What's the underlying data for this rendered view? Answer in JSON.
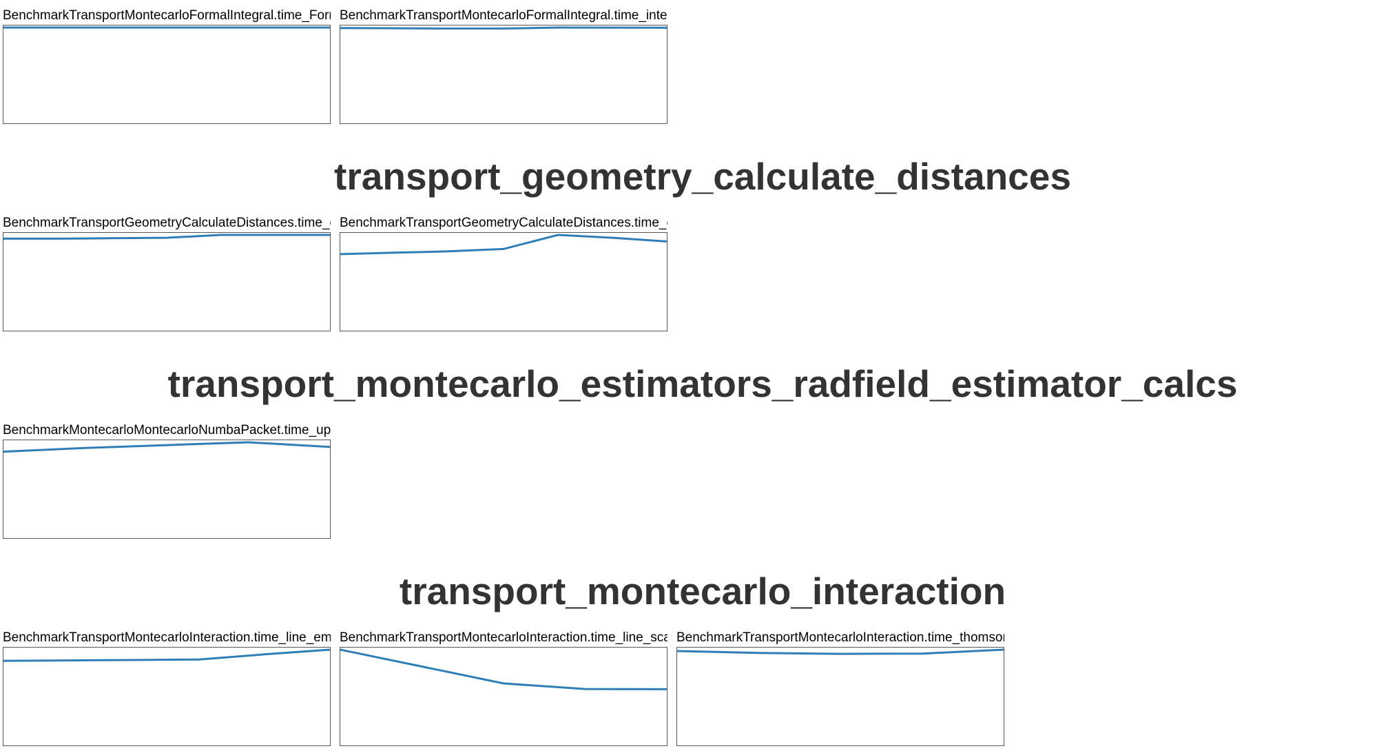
{
  "sections": [
    {
      "heading": "",
      "graphs": [
        {
          "title": "BenchmarkTransportMontecarloFormalIntegral.time_FormalIntegral_functions",
          "trend": [
            1.0,
            1.0,
            1.0,
            1.0,
            1.0,
            1.0,
            1.0
          ]
        },
        {
          "title": "BenchmarkTransportMontecarloFormalIntegral.time_intensity_black_body",
          "trend": [
            0.995,
            0.993,
            0.99,
            0.99,
            1.0,
            0.999,
            0.998
          ]
        }
      ]
    },
    {
      "heading": "transport_geometry_calculate_distances",
      "graphs": [
        {
          "title": "BenchmarkTransportGeometryCalculateDistances.time_calculate_distance_boundary",
          "trend": [
            0.96,
            0.96,
            0.965,
            0.97,
            1.0,
            1.0,
            1.0
          ]
        },
        {
          "title": "BenchmarkTransportGeometryCalculateDistances.time_calculate_distance_line",
          "trend": [
            0.795,
            0.81,
            0.825,
            0.85,
            1.0,
            0.97,
            0.93
          ]
        }
      ]
    },
    {
      "heading": "transport_montecarlo_estimators_radfield_estimator_calcs",
      "graphs": [
        {
          "title": "BenchmarkMontecarloMontecarloNumbaPacket.time_update_line_estimators",
          "trend": [
            0.9,
            0.94,
            0.97,
            1.0,
            0.95
          ]
        }
      ]
    },
    {
      "heading": "transport_montecarlo_interaction",
      "graphs": [
        {
          "title": "BenchmarkTransportMontecarloInteraction.time_line_emission",
          "trend": [
            0.88,
            0.885,
            0.89,
            0.895,
            0.95,
            1.0
          ]
        },
        {
          "title": "BenchmarkTransportMontecarloInteraction.time_line_scatter_event",
          "trend": [
            1.0,
            0.82,
            0.64,
            0.58,
            0.578
          ]
        },
        {
          "title": "BenchmarkTransportMontecarloInteraction.time_thomson_scatter",
          "trend": [
            0.985,
            0.965,
            0.955,
            0.958,
            1.0
          ]
        }
      ]
    }
  ],
  "colors": {
    "line": "#2f7eb8",
    "heading": "#333333",
    "frame": "#555555"
  }
}
